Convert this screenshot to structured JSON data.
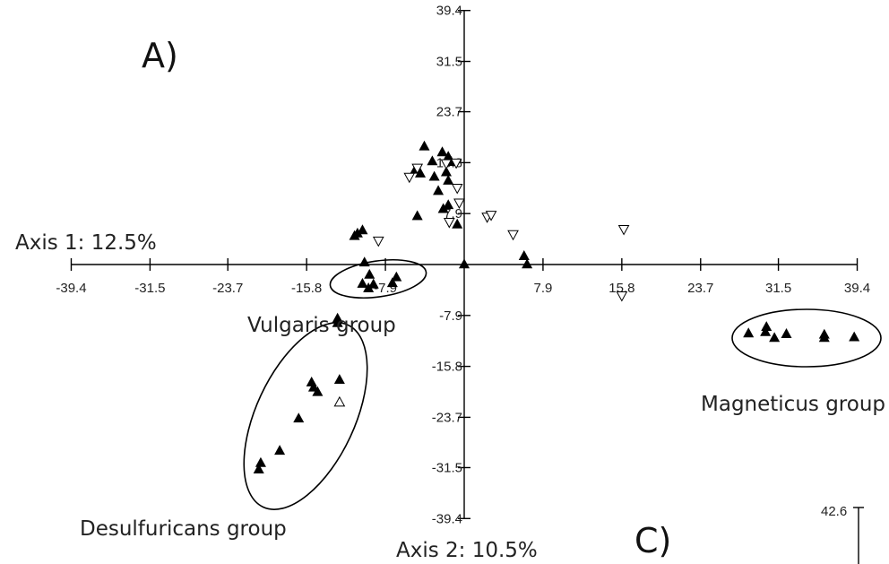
{
  "panel_labels": {
    "a": "A)",
    "c": "C)"
  },
  "extra_tick": "42.6",
  "chart_data": {
    "type": "scatter",
    "xlabel": "Axis 1: 12.5%",
    "ylabel": "Axis 2: 10.5%",
    "xlim": [
      -39.4,
      39.4
    ],
    "ylim": [
      -39.4,
      39.4
    ],
    "x_ticks": [
      "-39.4",
      "-31.5",
      "-23.7",
      "-15.8",
      "-7.9",
      "7.9",
      "15.8",
      "23.7",
      "31.5",
      "39.4"
    ],
    "y_ticks": [
      "39.4",
      "31.5",
      "23.7",
      "15.8",
      "7.9",
      "-7.9",
      "-15.8",
      "-23.7",
      "-31.5",
      "-39.4"
    ],
    "grid": false,
    "groups": [
      {
        "label": "Vulgaris group"
      },
      {
        "label": "Desulfuricans group"
      },
      {
        "label": "Magneticus group"
      }
    ],
    "series": [
      {
        "marker": "filled-triangle-up",
        "points": [
          [
            -4.0,
            18.3
          ],
          [
            -3.2,
            16.0
          ],
          [
            -2.2,
            17.4
          ],
          [
            -1.6,
            16.7
          ],
          [
            -1.3,
            15.9
          ],
          [
            -4.9,
            14.7
          ],
          [
            -4.4,
            14.1
          ],
          [
            -3.0,
            13.6
          ],
          [
            -1.8,
            14.3
          ],
          [
            -1.6,
            13.0
          ],
          [
            -2.6,
            11.4
          ],
          [
            -2.1,
            8.6
          ],
          [
            -1.6,
            9.2
          ],
          [
            -0.7,
            6.2
          ],
          [
            -10.7,
            4.8
          ],
          [
            -10.2,
            5.3
          ],
          [
            -11.0,
            4.4
          ],
          [
            -10.0,
            0.3
          ],
          [
            -4.7,
            7.5
          ],
          [
            -9.5,
            -1.6
          ],
          [
            -9.1,
            -3.1
          ],
          [
            -10.2,
            -3.0
          ],
          [
            -9.6,
            -3.7
          ],
          [
            -6.8,
            -2.0
          ],
          [
            -7.2,
            -2.9
          ],
          [
            0.0,
            0.0
          ],
          [
            6.0,
            1.3
          ],
          [
            6.3,
            0.0
          ],
          [
            -12.7,
            -8.4
          ],
          [
            -12.7,
            -9.1
          ],
          [
            -12.5,
            -17.9
          ],
          [
            -15.3,
            -18.3
          ],
          [
            -15.1,
            -19.1
          ],
          [
            -14.7,
            -19.8
          ],
          [
            -16.6,
            -23.9
          ],
          [
            -18.5,
            -28.9
          ],
          [
            -20.4,
            -30.8
          ],
          [
            -20.6,
            -31.8
          ],
          [
            28.5,
            -10.7
          ],
          [
            30.3,
            -9.7
          ],
          [
            30.2,
            -10.5
          ],
          [
            31.1,
            -11.4
          ],
          [
            32.3,
            -10.8
          ],
          [
            36.1,
            -10.9
          ],
          [
            36.1,
            -11.4
          ],
          [
            39.1,
            -11.3
          ]
        ]
      },
      {
        "marker": "open-triangle-down",
        "points": [
          [
            -1.8,
            15.7
          ],
          [
            -0.8,
            15.8
          ],
          [
            -4.7,
            15.0
          ],
          [
            -5.5,
            13.6
          ],
          [
            -0.7,
            11.9
          ],
          [
            -0.5,
            9.6
          ],
          [
            2.3,
            7.4
          ],
          [
            2.7,
            7.7
          ],
          [
            4.9,
            4.7
          ],
          [
            -8.6,
            3.7
          ],
          [
            16.0,
            5.5
          ],
          [
            15.8,
            -4.8
          ],
          [
            -1.5,
            6.6
          ]
        ]
      },
      {
        "marker": "open-triangle-up",
        "points": [
          [
            -12.5,
            -21.4
          ]
        ]
      }
    ]
  }
}
